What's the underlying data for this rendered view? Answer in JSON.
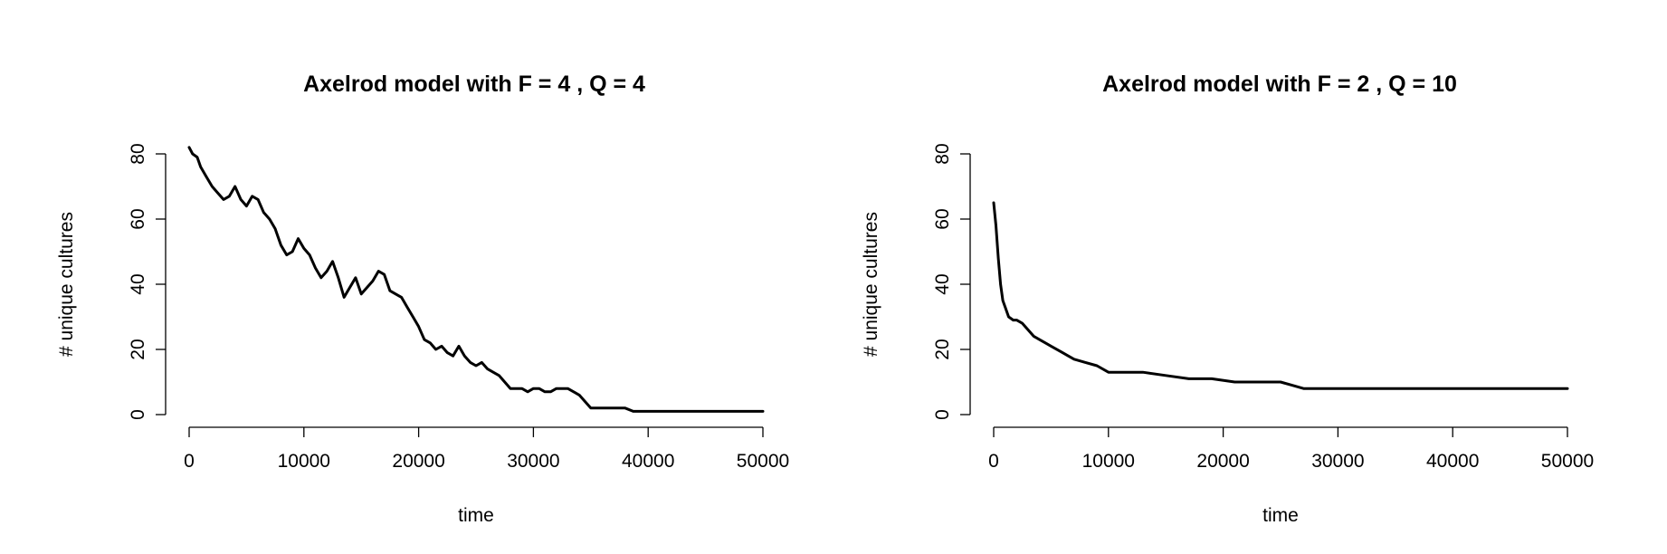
{
  "chart_data": [
    {
      "type": "line",
      "title": "Axelrod model with F =  4 , Q =  4",
      "xlabel": "time",
      "ylabel": "# unique cultures",
      "xlim": [
        0,
        50000
      ],
      "ylim": [
        0,
        80
      ],
      "xticks": [
        0,
        10000,
        20000,
        30000,
        40000,
        50000
      ],
      "yticks": [
        0,
        20,
        40,
        60,
        80
      ],
      "xtick_labels": [
        "0",
        "10000",
        "20000",
        "30000",
        "40000",
        "50000"
      ],
      "ytick_labels": [
        "0",
        "20",
        "40",
        "60",
        "80"
      ],
      "color": "#000000",
      "grid": false,
      "series": [
        {
          "x": [
            0,
            300,
            700,
            1000,
            1500,
            2000,
            2500,
            3000,
            3500,
            4000,
            4500,
            5000,
            5500,
            6000,
            6500,
            7000,
            7500,
            8000,
            8500,
            9000,
            9500,
            10000,
            10500,
            11000,
            11500,
            12000,
            12500,
            13000,
            13500,
            14000,
            14500,
            15000,
            15500,
            16000,
            16500,
            17000,
            17500,
            18000,
            18500,
            19000,
            19500,
            20000,
            20500,
            21000,
            21500,
            22000,
            22500,
            23000,
            23500,
            24000,
            24500,
            25000,
            25500,
            26000,
            26500,
            27000,
            27500,
            28000,
            28500,
            29000,
            29500,
            30000,
            30500,
            31000,
            31500,
            32000,
            32500,
            33000,
            33500,
            34000,
            34500,
            35000,
            36000,
            37000,
            38000,
            38700,
            40000,
            42000,
            44000,
            46000,
            48000,
            50000
          ],
          "y": [
            82,
            80,
            79,
            76,
            73,
            70,
            68,
            66,
            67,
            70,
            66,
            64,
            67,
            66,
            62,
            60,
            57,
            52,
            49,
            50,
            54,
            51,
            49,
            45,
            42,
            44,
            47,
            42,
            36,
            39,
            42,
            37,
            39,
            41,
            44,
            43,
            38,
            37,
            36,
            33,
            30,
            27,
            23,
            22,
            20,
            21,
            19,
            18,
            21,
            18,
            16,
            15,
            16,
            14,
            13,
            12,
            10,
            8,
            8,
            8,
            7,
            8,
            8,
            7,
            7,
            8,
            8,
            8,
            7,
            6,
            4,
            2,
            2,
            2,
            2,
            1,
            1,
            1,
            1,
            1,
            1,
            1
          ]
        }
      ]
    },
    {
      "type": "line",
      "title": "Axelrod model with F =  2 , Q =  10",
      "xlabel": "time",
      "ylabel": "# unique cultures",
      "xlim": [
        0,
        50000
      ],
      "ylim": [
        0,
        80
      ],
      "xticks": [
        0,
        10000,
        20000,
        30000,
        40000,
        50000
      ],
      "yticks": [
        0,
        20,
        40,
        60,
        80
      ],
      "xtick_labels": [
        "0",
        "10000",
        "20000",
        "30000",
        "40000",
        "50000"
      ],
      "ytick_labels": [
        "0",
        "20",
        "40",
        "60",
        "80"
      ],
      "color": "#000000",
      "grid": false,
      "series": [
        {
          "x": [
            0,
            200,
            400,
            600,
            800,
            1000,
            1300,
            1700,
            2000,
            2500,
            3000,
            3500,
            4000,
            4500,
            5000,
            6000,
            6500,
            7000,
            8000,
            9000,
            10000,
            11000,
            13000,
            15000,
            17000,
            19000,
            21000,
            23000,
            25000,
            26000,
            27000,
            30000,
            35000,
            40000,
            45000,
            50000
          ],
          "y": [
            65,
            58,
            48,
            40,
            35,
            33,
            30,
            29,
            29,
            28,
            26,
            24,
            23,
            22,
            21,
            19,
            18,
            17,
            16,
            15,
            13,
            13,
            13,
            12,
            11,
            11,
            10,
            10,
            10,
            9,
            8,
            8,
            8,
            8,
            8,
            8
          ]
        }
      ]
    }
  ]
}
